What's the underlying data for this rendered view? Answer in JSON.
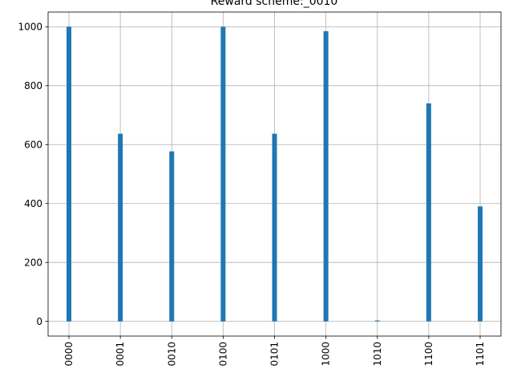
{
  "chart_data": {
    "type": "bar",
    "title": "Reward scheme:_0010",
    "xlabel": "",
    "ylabel": "",
    "categories": [
      "0000",
      "0001",
      "0010",
      "0100",
      "0101",
      "1000",
      "1010",
      "1100",
      "1101"
    ],
    "values": [
      1000,
      637,
      577,
      1000,
      637,
      985,
      3,
      740,
      390
    ],
    "ylim": [
      -50,
      1050
    ],
    "yticks": [
      0,
      200,
      400,
      600,
      800,
      1000
    ],
    "grid": true,
    "x_tick_rotation": "vertical",
    "colors": {
      "bar": "#1f77b4"
    }
  }
}
